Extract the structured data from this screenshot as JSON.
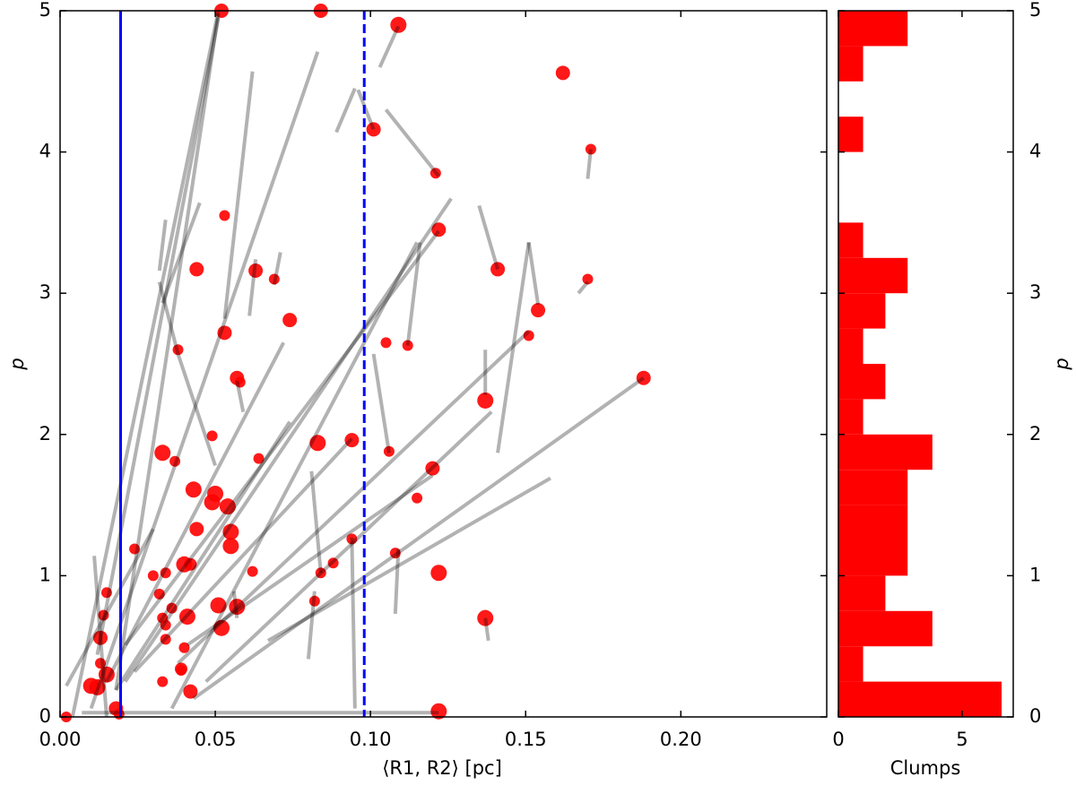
{
  "chart_data": [
    {
      "type": "scatter",
      "xlabel": "⟨R1, R2⟩ [pc]",
      "ylabel": "p",
      "xlim": [
        0,
        0.247
      ],
      "ylim": [
        0,
        5
      ],
      "xticks": [
        {
          "value": 0,
          "label": "0.00"
        },
        {
          "value": 0.05,
          "label": "0.05"
        },
        {
          "value": 0.1,
          "label": "0.10"
        },
        {
          "value": 0.15,
          "label": "0.15"
        },
        {
          "value": 0.2,
          "label": "0.20"
        }
      ],
      "yticks": [
        0,
        1,
        2,
        3,
        4,
        5
      ],
      "series": [
        {
          "color": "#ff0000",
          "x": [
            0.002,
            0.018,
            0.019,
            0.01,
            0.012,
            0.015,
            0.013,
            0.013,
            0.014,
            0.015,
            0.024,
            0.033,
            0.037,
            0.03,
            0.032,
            0.034,
            0.033,
            0.034,
            0.036,
            0.034,
            0.033,
            0.039,
            0.04,
            0.039,
            0.042,
            0.04,
            0.042,
            0.041,
            0.044,
            0.043,
            0.049,
            0.05,
            0.054,
            0.055,
            0.055,
            0.051,
            0.052,
            0.057,
            0.049,
            0.062,
            0.064,
            0.038,
            0.044,
            0.053,
            0.057,
            0.058,
            0.053,
            0.063,
            0.069,
            0.074,
            0.052,
            0.084,
            0.083,
            0.094,
            0.084,
            0.088,
            0.082,
            0.094,
            0.101,
            0.109,
            0.105,
            0.108,
            0.106,
            0.112,
            0.115,
            0.12,
            0.121,
            0.122,
            0.122,
            0.122,
            0.137,
            0.137,
            0.141,
            0.162,
            0.154,
            0.151,
            0.171,
            0.17,
            0.188
          ],
          "y": [
            0,
            0.06,
            0.02,
            0.22,
            0.21,
            0.3,
            0.38,
            0.56,
            0.72,
            0.88,
            1.19,
            1.87,
            1.81,
            1.0,
            0.87,
            1.02,
            0.7,
            0.65,
            0.77,
            0.55,
            0.25,
            0.33,
            0.49,
            0.34,
            0.18,
            1.08,
            1.08,
            0.71,
            1.33,
            1.61,
            1.52,
            1.58,
            1.49,
            1.31,
            1.21,
            0.79,
            0.63,
            0.78,
            1.99,
            1.03,
            1.83,
            2.6,
            3.17,
            2.72,
            2.4,
            2.37,
            3.55,
            3.16,
            3.1,
            2.81,
            5.0,
            5.0,
            1.94,
            1.96,
            1.02,
            1.09,
            0.82,
            1.26,
            4.16,
            4.9,
            2.65,
            1.16,
            1.88,
            2.63,
            1.55,
            1.76,
            3.85,
            3.45,
            1.02,
            0.04,
            2.24,
            0.7,
            3.17,
            4.56,
            2.88,
            2.7,
            4.02,
            3.1,
            2.4
          ],
          "sizes": [
            6,
            8,
            6,
            9,
            9,
            9,
            6,
            8,
            6,
            6,
            6,
            9,
            6,
            6,
            6,
            6,
            6,
            6,
            6,
            6,
            6,
            6,
            6,
            7,
            8,
            9,
            7,
            9,
            8,
            9,
            9,
            9,
            9,
            9,
            9,
            9,
            9,
            9,
            6,
            6,
            6,
            6,
            8,
            8,
            8,
            6,
            6,
            8,
            6,
            8,
            8,
            8,
            9,
            8,
            6,
            6,
            6,
            6,
            8,
            9,
            6,
            6,
            6,
            6,
            6,
            8,
            6,
            8,
            9,
            9,
            9,
            9,
            8,
            8,
            8,
            6,
            6,
            6,
            8
          ]
        }
      ],
      "segments_color": "#000000",
      "segments_alpha": 0.3,
      "segments": [
        {
          "x": [
            0.011,
            0.015
          ],
          "y": [
            1.14,
            0
          ]
        },
        {
          "x": [
            0.002,
            0.03
          ],
          "y": [
            0.22,
            1.33
          ]
        },
        {
          "x": [
            0.007,
            0.122
          ],
          "y": [
            0.03,
            0.03
          ]
        },
        {
          "x": [
            0.004,
            0.051
          ],
          "y": [
            0,
            5.0
          ]
        },
        {
          "x": [
            0.012,
            0.051
          ],
          "y": [
            0.44,
            4.95
          ]
        },
        {
          "x": [
            0.018,
            0.051
          ],
          "y": [
            0.19,
            4.98
          ]
        },
        {
          "x": [
            0.032,
            0.034
          ],
          "y": [
            3.16,
            3.52
          ]
        },
        {
          "x": [
            0.032,
            0.038
          ],
          "y": [
            3.08,
            2.57
          ]
        },
        {
          "x": [
            0.038,
            0.05
          ],
          "y": [
            2.57,
            1.78
          ]
        },
        {
          "x": [
            0.033,
            0.045
          ],
          "y": [
            2.93,
            3.64
          ]
        },
        {
          "x": [
            0.053,
            0.062
          ],
          "y": [
            2.82,
            4.57
          ]
        },
        {
          "x": [
            0.061,
            0.063
          ],
          "y": [
            2.84,
            3.24
          ]
        },
        {
          "x": [
            0.069,
            0.071
          ],
          "y": [
            3.06,
            3.29
          ]
        },
        {
          "x": [
            0.057,
            0.059
          ],
          "y": [
            2.38,
            2.16
          ]
        },
        {
          "x": [
            0.01,
            0.083
          ],
          "y": [
            0.06,
            4.71
          ]
        },
        {
          "x": [
            0.018,
            0.074
          ],
          "y": [
            0.19,
            2.09
          ]
        },
        {
          "x": [
            0.015,
            0.072
          ],
          "y": [
            0.25,
            2.65
          ]
        },
        {
          "x": [
            0.021,
            0.126
          ],
          "y": [
            0.25,
            3.67
          ]
        },
        {
          "x": [
            0.021,
            0.122
          ],
          "y": [
            0.51,
            3.44
          ]
        },
        {
          "x": [
            0.036,
            0.115
          ],
          "y": [
            0.06,
            3.36
          ]
        },
        {
          "x": [
            0.024,
            0.094
          ],
          "y": [
            0.32,
            1.97
          ]
        },
        {
          "x": [
            0.038,
            0.151
          ],
          "y": [
            0.38,
            2.73
          ]
        },
        {
          "x": [
            0.043,
            0.188
          ],
          "y": [
            0.13,
            2.4
          ]
        },
        {
          "x": [
            0.067,
            0.158
          ],
          "y": [
            0.54,
            1.69
          ]
        },
        {
          "x": [
            0.047,
            0.139
          ],
          "y": [
            0.25,
            2.16
          ]
        },
        {
          "x": [
            0.041,
            0.12
          ],
          "y": [
            0.51,
            1.71
          ]
        },
        {
          "x": [
            0.08,
            0.082
          ],
          "y": [
            0.41,
            0.89
          ]
        },
        {
          "x": [
            0.081,
            0.084
          ],
          "y": [
            1.74,
            1.02
          ]
        },
        {
          "x": [
            0.095,
            0.094
          ],
          "y": [
            0.06,
            1.27
          ]
        },
        {
          "x": [
            0.108,
            0.109
          ],
          "y": [
            0.73,
            1.19
          ]
        },
        {
          "x": [
            0.089,
            0.095
          ],
          "y": [
            4.14,
            4.45
          ]
        },
        {
          "x": [
            0.096,
            0.101
          ],
          "y": [
            4.44,
            4.16
          ]
        },
        {
          "x": [
            0.105,
            0.122
          ],
          "y": [
            4.3,
            3.83
          ]
        },
        {
          "x": [
            0.109,
            0.103
          ],
          "y": [
            4.89,
            4.6
          ]
        },
        {
          "x": [
            0.101,
            0.106
          ],
          "y": [
            2.57,
            1.87
          ]
        },
        {
          "x": [
            0.112,
            0.116
          ],
          "y": [
            2.63,
            3.36
          ]
        },
        {
          "x": [
            0.135,
            0.141
          ],
          "y": [
            3.62,
            3.17
          ]
        },
        {
          "x": [
            0.137,
            0.137
          ],
          "y": [
            2.6,
            2.28
          ]
        },
        {
          "x": [
            0.141,
            0.151
          ],
          "y": [
            1.87,
            3.36
          ]
        },
        {
          "x": [
            0.151,
            0.154
          ],
          "y": [
            3.36,
            2.92
          ]
        },
        {
          "x": [
            0.167,
            0.17
          ],
          "y": [
            3.0,
            3.08
          ]
        },
        {
          "x": [
            0.171,
            0.17
          ],
          "y": [
            4.02,
            3.81
          ]
        },
        {
          "x": [
            0.137,
            0.138
          ],
          "y": [
            0.7,
            0.54
          ]
        },
        {
          "x": [
            0.056,
            0.057
          ],
          "y": [
            0.89,
            0.7
          ]
        }
      ],
      "vlines": [
        {
          "x": 0.0195,
          "color": "#0000ff",
          "style": "solid"
        },
        {
          "x": 0.098,
          "color": "#0000ff",
          "style": "dashed"
        }
      ]
    },
    {
      "type": "histogram",
      "orientation": "horizontal",
      "xlabel": "Clumps",
      "ylabel": "p",
      "xlim": [
        0,
        7.07
      ],
      "ylim": [
        0,
        5
      ],
      "xticks": [
        0,
        5
      ],
      "yticks": [
        0,
        1,
        2,
        3,
        4,
        5
      ],
      "color": "#ff0000",
      "bins": [
        0,
        0.25,
        0.5,
        0.75,
        1,
        1.25,
        1.5,
        1.75,
        2,
        2.25,
        2.5,
        2.75,
        3,
        3.25,
        3.5,
        3.75,
        4,
        4.25,
        4.5,
        4.75,
        5
      ],
      "counts": [
        6.6,
        1,
        3.8,
        1.9,
        2.8,
        2.8,
        2.8,
        3.8,
        1,
        1.9,
        1,
        1.9,
        2.8,
        1,
        0,
        0,
        1,
        0,
        1,
        2.8
      ]
    }
  ]
}
